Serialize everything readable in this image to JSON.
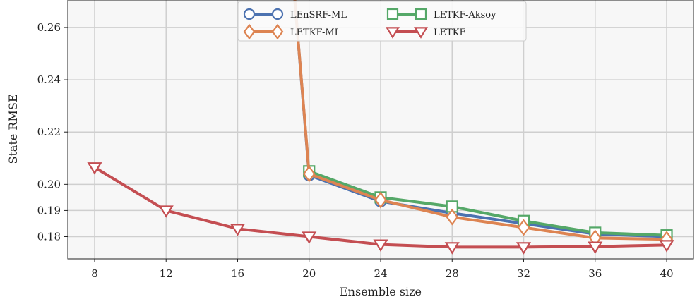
{
  "chart_data": {
    "type": "line",
    "xlabel": "Ensemble size",
    "ylabel": "State RMSE",
    "x": [
      8,
      12,
      16,
      20,
      24,
      28,
      32,
      36,
      40
    ],
    "xlim": [
      6.5,
      41.5
    ],
    "ylim": [
      0.1715,
      0.2705
    ],
    "yticks": [
      0.18,
      0.19,
      0.2,
      0.22,
      0.24,
      0.26
    ],
    "ytick_labels": [
      "0.18",
      "0.19",
      "0.20",
      "0.22",
      "0.24",
      "0.26"
    ],
    "grid": true,
    "legend_position": "top-center",
    "series": [
      {
        "name": "LEnSRF-ML",
        "color": "#4c72b0",
        "marker": "circle",
        "x": [
          19.2,
          20,
          24,
          28,
          32,
          36,
          40
        ],
        "values": [
          0.2705,
          0.2035,
          0.1935,
          0.189,
          0.185,
          0.181,
          0.18
        ]
      },
      {
        "name": "LETKF-Aksoy",
        "color": "#55a868",
        "marker": "square",
        "x": [
          20,
          24,
          28,
          32,
          36,
          40
        ],
        "values": [
          0.205,
          0.195,
          0.1915,
          0.186,
          0.1815,
          0.1805
        ]
      },
      {
        "name": "LETKF-ML",
        "color": "#dd8452",
        "marker": "diamond",
        "x": [
          19.2,
          20,
          24,
          28,
          32,
          36,
          40
        ],
        "values": [
          0.2705,
          0.204,
          0.194,
          0.1875,
          0.1835,
          0.1795,
          0.179
        ]
      },
      {
        "name": "LETKF",
        "color": "#c44e52",
        "marker": "triangle-down",
        "x": [
          8,
          12,
          16,
          20,
          24,
          28,
          32,
          36,
          40
        ],
        "values": [
          0.2065,
          0.19,
          0.183,
          0.18,
          0.177,
          0.176,
          0.176,
          0.1762,
          0.1768
        ]
      }
    ]
  }
}
